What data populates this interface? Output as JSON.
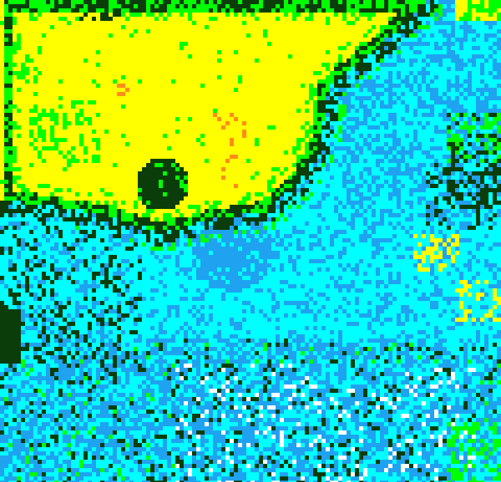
{
  "map": {
    "palette": {
      "high": "#ffff00",
      "peak": "#ff8c1a",
      "mid_high": "#00ff00",
      "mid": "#0a3d0a",
      "mid_low": "#00ffff",
      "low": "#1fa3f0",
      "lowest": "#ffffff"
    }
  }
}
